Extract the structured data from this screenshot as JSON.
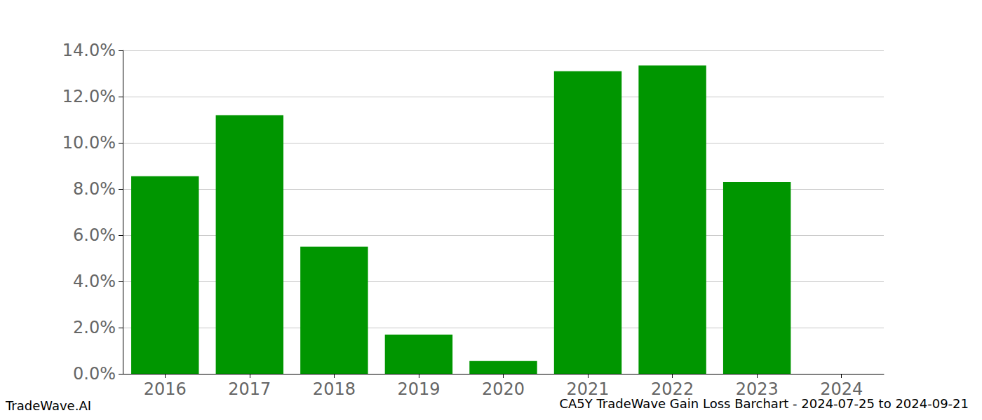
{
  "chart_data": {
    "type": "bar",
    "title": "CA5Y TradeWave Gain Loss Barchart - 2024-07-25 to 2024-09-21",
    "annotations": [
      "TradeWave.AI"
    ],
    "categories": [
      "2016",
      "2017",
      "2018",
      "2019",
      "2020",
      "2021",
      "2022",
      "2023",
      "2024"
    ],
    "values": [
      8.55,
      11.2,
      5.5,
      1.7,
      0.55,
      13.1,
      13.35,
      8.3,
      0
    ],
    "color": "#009600",
    "ylim": [
      0,
      14
    ],
    "yticks": [
      {
        "value": 0,
        "label": "0.0%"
      },
      {
        "value": 2,
        "label": "2.0%"
      },
      {
        "value": 4,
        "label": "4.0%"
      },
      {
        "value": 6,
        "label": "6.0%"
      },
      {
        "value": 8,
        "label": "8.0%"
      },
      {
        "value": 10,
        "label": "10.0%"
      },
      {
        "value": 12,
        "label": "12.0%"
      },
      {
        "value": 14,
        "label": "14.0%"
      }
    ],
    "grid": true
  }
}
